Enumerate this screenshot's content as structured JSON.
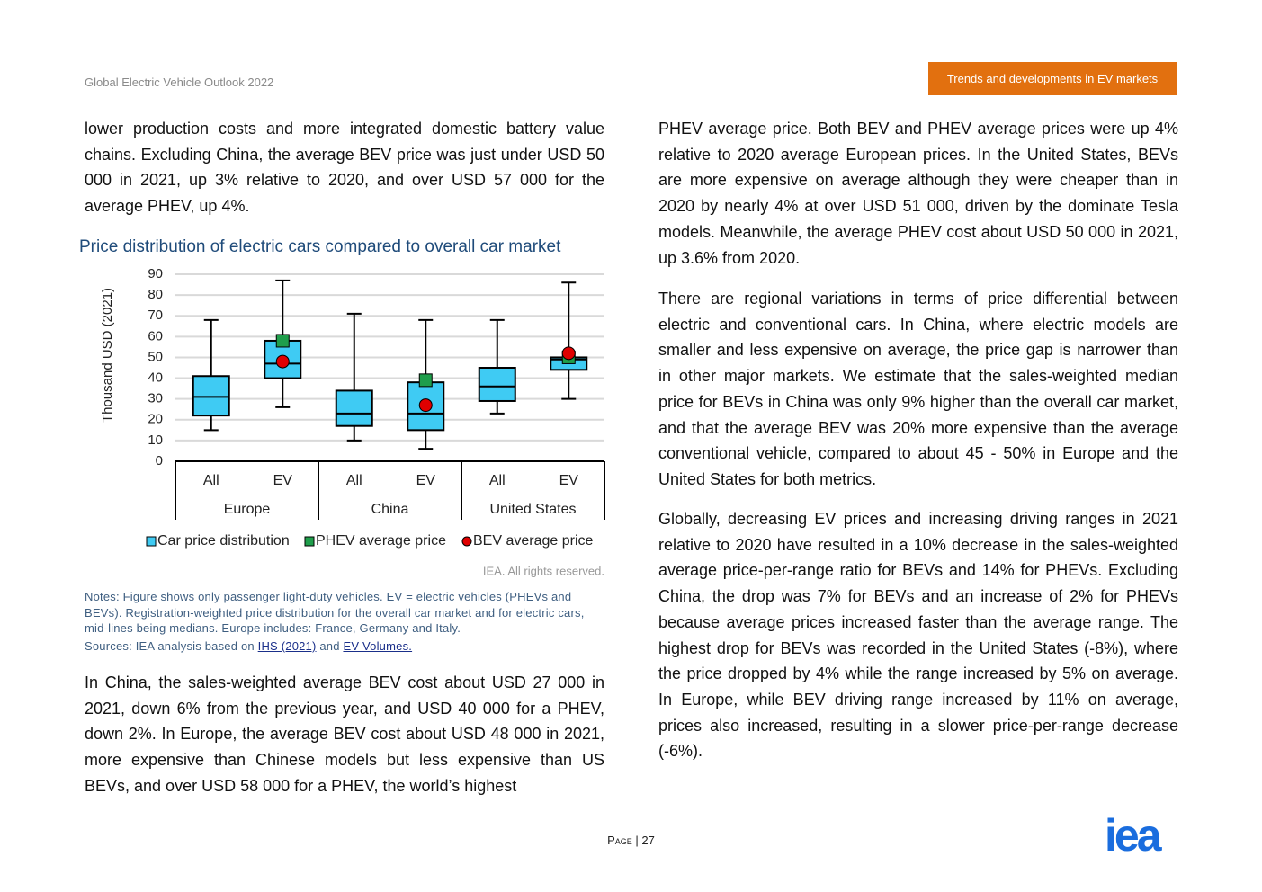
{
  "header": {
    "left": "Global Electric Vehicle Outlook 2022",
    "tab": "Trends and developments in EV markets"
  },
  "left_column": {
    "paragraph_1": "lower production costs and more integrated domestic battery value chains. Excluding China, the average BEV price was just under USD 50 000 in 2021, up 3% relative to 2020, and over USD 57 000 for the average PHEV, up 4%.",
    "copyright": "IEA. All rights reserved.",
    "notes": "Notes: Figure shows only passenger light-duty vehicles. EV = electric vehicles (PHEVs and BEVs). Registration-weighted price distribution for the overall car market and for electric cars, mid-lines being medians. Europe includes: France, Germany and Italy.",
    "sources": {
      "prefix": "Sources: IEA analysis based on",
      "link_1": "IHS (2021)",
      "joiner": "and",
      "link_2": "EV Volumes."
    },
    "paragraph_2": "In China, the sales-weighted average BEV cost about USD 27 000 in 2021, down 6% from the previous year, and USD 40 000 for a PHEV, down 2%. In Europe, the average BEV cost about USD 48 000 in 2021, more expensive than Chinese models but less expensive than US BEVs, and over USD 58 000 for a PHEV, the world’s highest"
  },
  "right_column": {
    "paragraph_1": "PHEV average price. Both BEV and PHEV average prices were up 4% relative to 2020 average European prices. In the United States, BEVs are more expensive on average although they were cheaper than in 2020 by nearly 4% at over USD 51 000, driven by the dominate Tesla models. Meanwhile, the average PHEV cost about USD 50 000 in 2021, up 3.6% from 2020.",
    "paragraph_2": "There are regional variations in terms of price differential between electric and conventional cars. In China, where electric models are smaller and less expensive on average, the price gap is narrower than in other major markets. We estimate that the sales-weighted median price for BEVs in China was only 9% higher than the overall car market, and that the average BEV was 20% more expensive than the average conventional vehicle, compared to about 45 - 50% in Europe and the United States for both metrics.",
    "paragraph_3": "Globally, decreasing EV prices and increasing driving ranges in 2021 relative to 2020 have resulted in a 10% decrease in the sales-weighted average price-per-range ratio for BEVs and 14% for PHEVs. Excluding China, the drop was 7% for BEVs and an increase of 2% for PHEVs because average prices increased faster than the average range. The highest drop for BEVs was recorded in the United States (-8%), where the price dropped by 4% while the range increased by 5% on average. In Europe, while BEV driving range increased by 11% on average, prices also increased, resulting in a slower price-per-range decrease (-6%)."
  },
  "footer": {
    "page": "Page | 27",
    "logo": "iea"
  },
  "chart_data": {
    "type": "box",
    "title": "Price distribution of electric cars compared to overall car market",
    "y_label": "Thousand USD (2021)",
    "categories": [
      "All",
      "EV",
      "All",
      "EV",
      "All",
      "EV"
    ],
    "groups": [
      "Europe",
      "China",
      "United States"
    ],
    "ylim": [
      0,
      90
    ],
    "yticks": [
      0,
      10,
      20,
      30,
      40,
      50,
      60,
      70,
      80,
      90
    ],
    "grid": true,
    "series": [
      {
        "name": "Car price distribution",
        "color": "#3fcbf3",
        "min": [
          15,
          26,
          10,
          6,
          23,
          30
        ],
        "q1": [
          22,
          40,
          17,
          15,
          29,
          44
        ],
        "median": [
          31,
          47,
          23,
          23,
          36,
          49
        ],
        "q3": [
          41,
          58,
          34,
          38,
          45,
          50
        ],
        "max": [
          68,
          87,
          71,
          68,
          68,
          86
        ]
      },
      {
        "name": "PHEV average price",
        "color": "#1f9e4b",
        "values": [
          null,
          58,
          null,
          39,
          null,
          50
        ]
      },
      {
        "name": "BEV average price",
        "color": "#e00000",
        "values": [
          null,
          48,
          null,
          27,
          null,
          52
        ]
      }
    ]
  }
}
